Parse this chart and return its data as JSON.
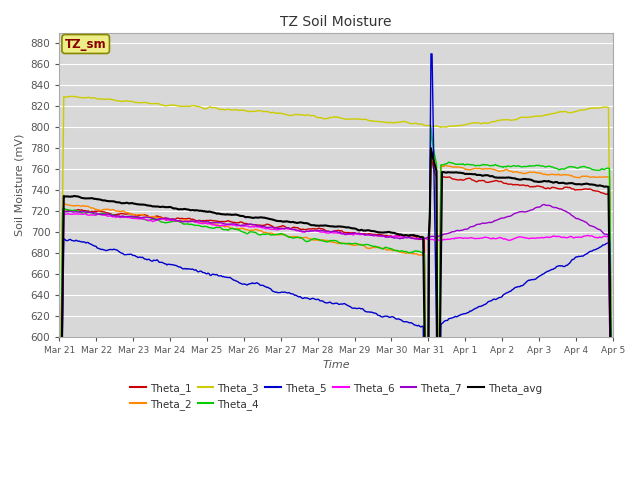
{
  "title": "TZ Soil Moisture",
  "xlabel": "Time",
  "ylabel": "Soil Moisture (mV)",
  "ylim": [
    600,
    890
  ],
  "xlim": [
    0,
    15
  ],
  "yticks": [
    600,
    620,
    640,
    660,
    680,
    700,
    720,
    740,
    760,
    780,
    800,
    820,
    840,
    860,
    880
  ],
  "background_color": "#e8e8e8",
  "plot_bg_color": "#d8d8d8",
  "grid_color": "#ffffff",
  "series_colors": {
    "Theta_1": "#cc0000",
    "Theta_2": "#ff8800",
    "Theta_3": "#cccc00",
    "Theta_4": "#00cc00",
    "Theta_5": "#0000cc",
    "Theta_6": "#ff00ff",
    "Theta_7": "#9900cc",
    "Theta_avg": "#000000"
  },
  "label_box_text": "TZ_sm",
  "label_box_color": "#eeee88",
  "label_box_text_color": "#880000",
  "label_box_edge_color": "#888800"
}
